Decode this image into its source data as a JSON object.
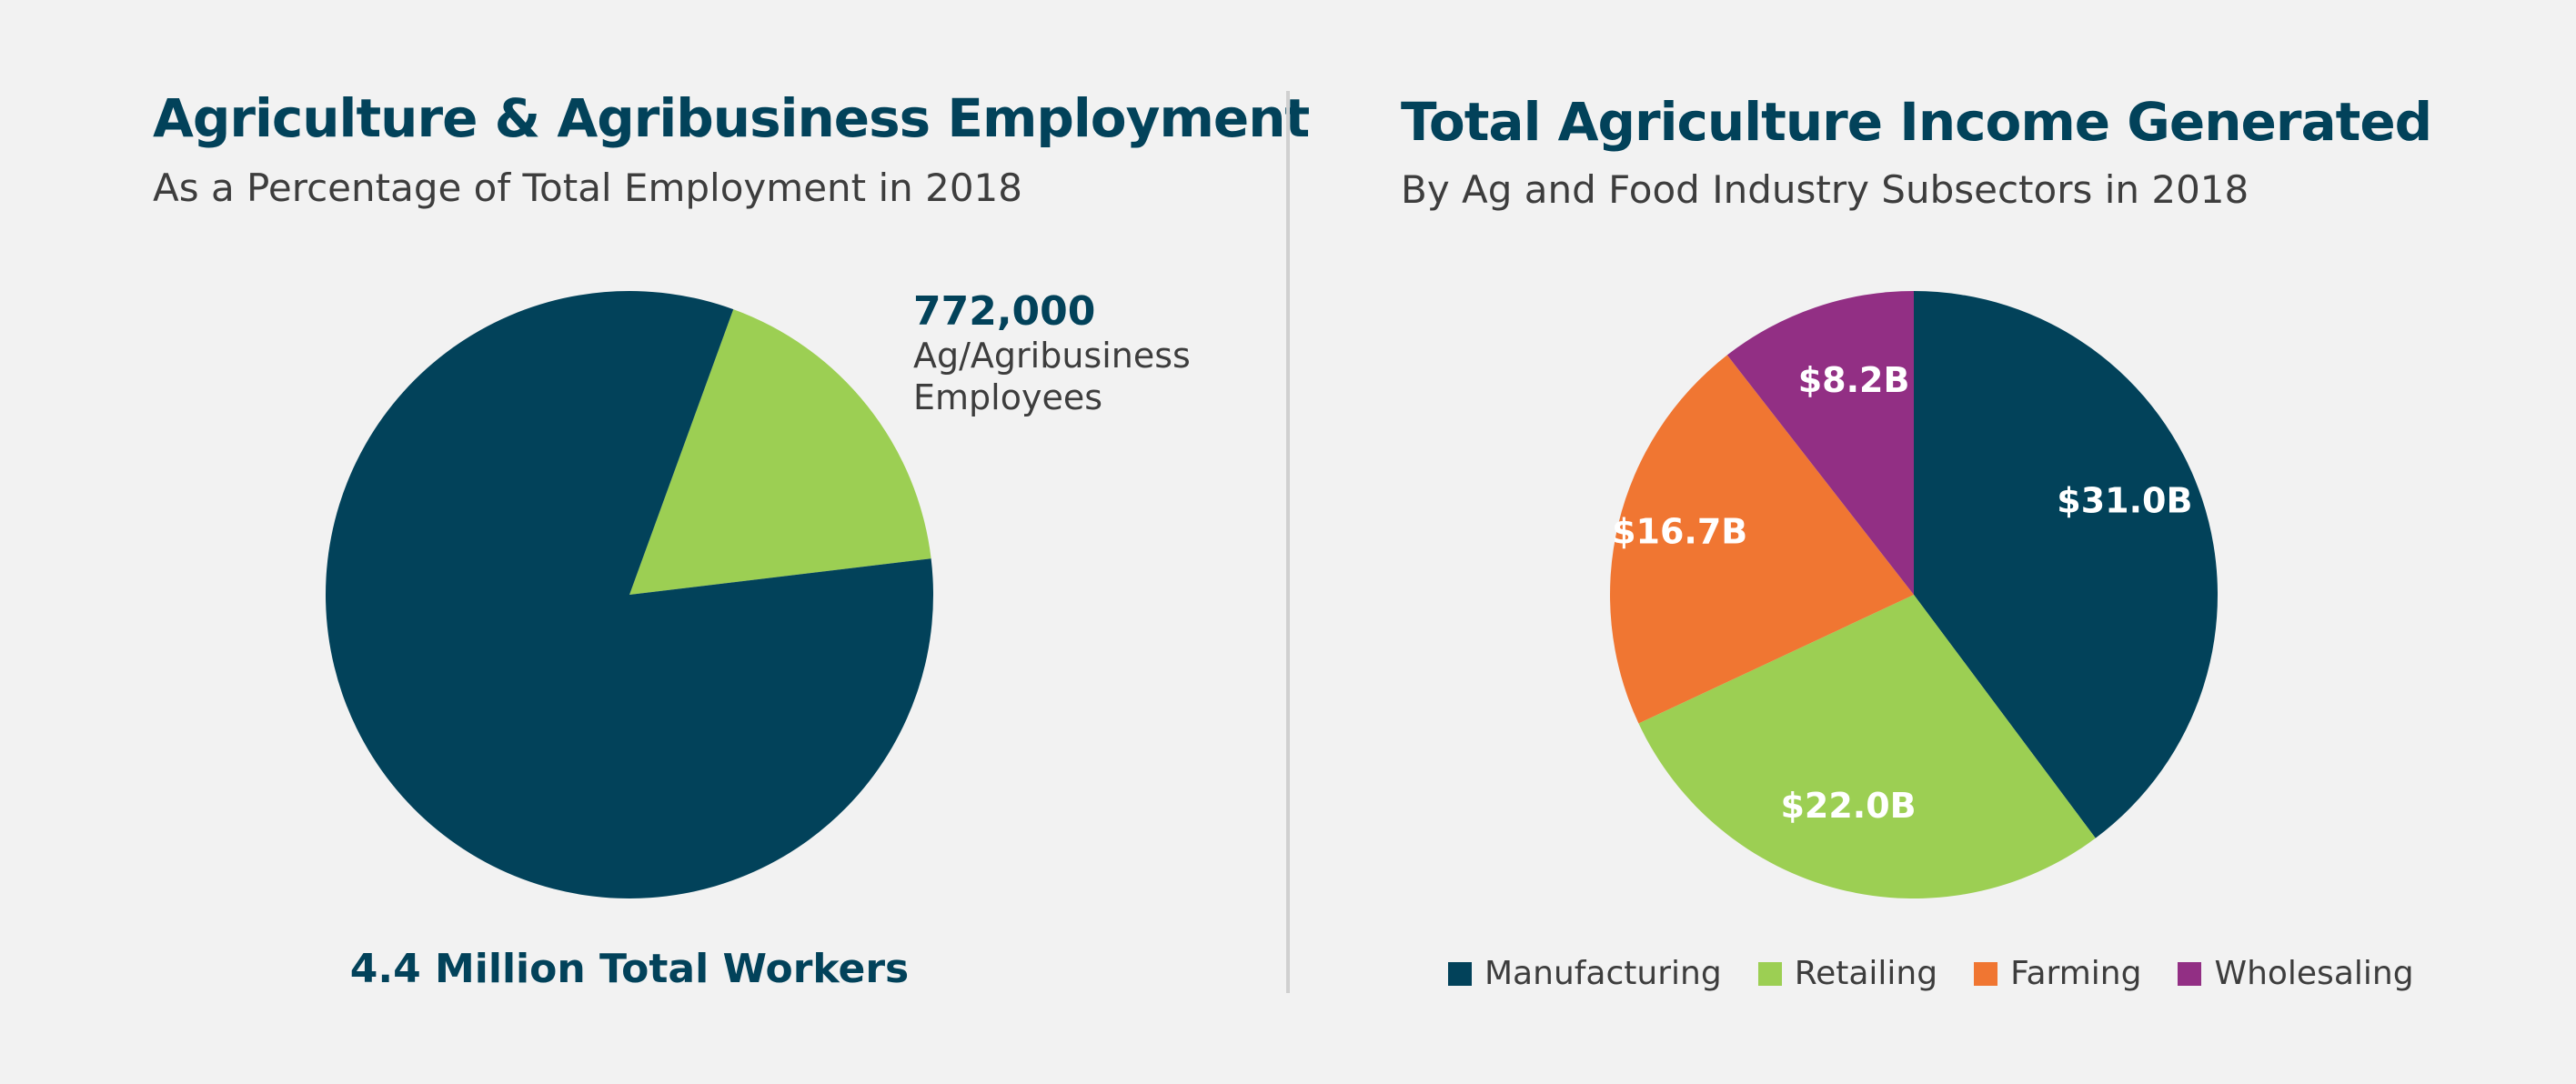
{
  "colors": {
    "navy": "#02425a",
    "green": "#9ccf53",
    "orange": "#f07632",
    "purple": "#922f84",
    "divider": "#d0d0d0",
    "background": "#f2f2f2"
  },
  "left_panel": {
    "title": "Agriculture & Agribusiness Employment",
    "subtitle": "As a Percentage of Total Employment in 2018",
    "callout": {
      "value": "772,000",
      "label_line1": "Ag/Agribusiness",
      "label_line2": "Employees"
    },
    "total_label": "4.4 Million Total Workers"
  },
  "right_panel": {
    "title": "Total Agriculture Income Generated",
    "subtitle": "By Ag and Food Industry Subsectors in 2018"
  },
  "chart_data": [
    {
      "type": "pie",
      "title": "Agriculture & Agribusiness Employment",
      "subtitle": "As a Percentage of Total Employment in 2018",
      "start_angle_deg": 20,
      "slices": [
        {
          "name": "Ag/Agribusiness Employees",
          "value": 772000,
          "color": "#9ccf53",
          "label": ""
        },
        {
          "name": "",
          "value": 3628000,
          "color": "#02425a",
          "label": ""
        }
      ],
      "total": 4400000,
      "annotation": "4.4 Million Total Workers"
    },
    {
      "type": "pie",
      "title": "Total Agriculture Income Generated",
      "subtitle": "By Ag and Food Industry Subsectors in 2018",
      "start_angle_deg": 0,
      "legend_position": "bottom",
      "slices": [
        {
          "name": "Manufacturing",
          "value": 31.0,
          "label": "$31.0B",
          "color": "#02425a"
        },
        {
          "name": "Retailing",
          "value": 22.0,
          "label": "$22.0B",
          "color": "#9ccf53"
        },
        {
          "name": "Farming",
          "value": 16.7,
          "label": "$16.7B",
          "color": "#f07632"
        },
        {
          "name": "Wholesaling",
          "value": 8.2,
          "label": "$8.2B",
          "color": "#922f84"
        }
      ]
    }
  ]
}
